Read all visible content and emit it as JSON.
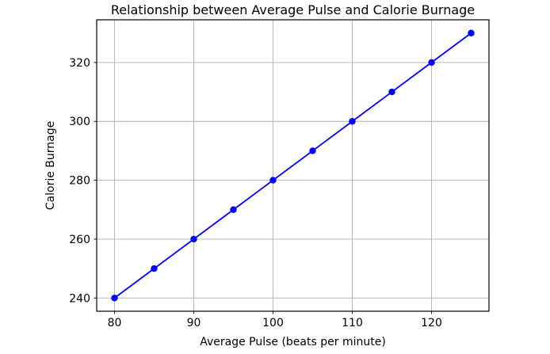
{
  "chart_data": {
    "type": "line",
    "title": "Relationship between Average Pulse and Calorie Burnage",
    "xlabel": "Average Pulse (beats per minute)",
    "ylabel": "Calorie Burnage",
    "x": [
      80,
      85,
      90,
      95,
      100,
      105,
      110,
      115,
      120,
      125
    ],
    "y": [
      240,
      250,
      260,
      270,
      280,
      290,
      300,
      310,
      320,
      330
    ],
    "xticks": [
      80,
      90,
      100,
      110,
      120
    ],
    "yticks": [
      240,
      260,
      280,
      300,
      320
    ],
    "xlim": [
      77.75,
      127.25
    ],
    "ylim": [
      235.5,
      334.5
    ],
    "grid": true,
    "legend": "none",
    "marker": "circle",
    "line_color": "#0000ff",
    "marker_color": "#0000ff",
    "grid_color": "#b0b0b0",
    "axes_color": "#000000",
    "background_color": "#ffffff"
  }
}
